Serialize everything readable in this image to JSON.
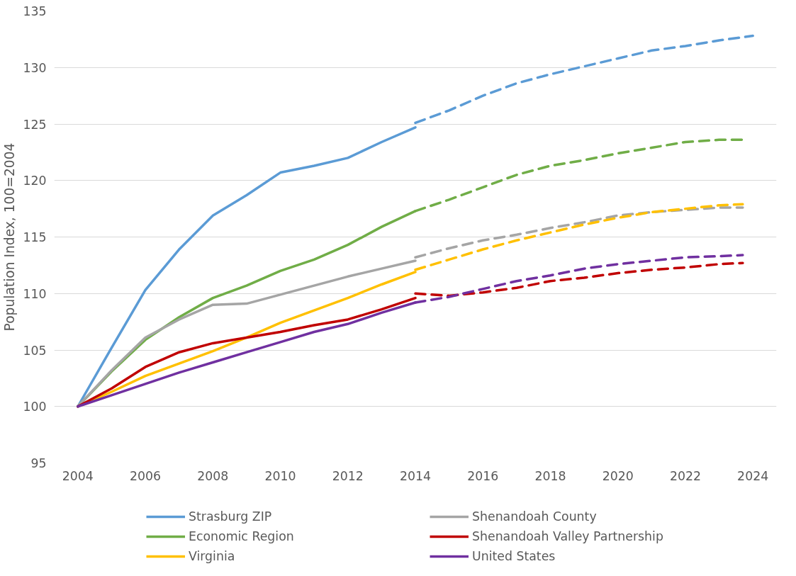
{
  "chart_data": {
    "type": "line",
    "ylabel": "Population Index, 100=2004",
    "xlim": [
      2003.3,
      2024.7
    ],
    "xticks": [
      2004,
      2006,
      2008,
      2010,
      2012,
      2014,
      2016,
      2018,
      2020,
      2022,
      2024
    ],
    "ylim": [
      95,
      135
    ],
    "yticks": [
      95,
      100,
      105,
      110,
      115,
      120,
      125,
      130,
      135
    ],
    "grid": "y",
    "legend": "bottom",
    "line_style": "solid",
    "marker": "none",
    "series": [
      {
        "name": "Strasburg ZIP",
        "color": "#5b9bd5",
        "x": [
          2004,
          2005,
          2006,
          2007,
          2008,
          2009,
          2010,
          2011,
          2012,
          2013,
          2014
        ],
        "values": [
          100,
          105.2,
          110.3,
          113.9,
          116.9,
          118.7,
          120.7,
          121.3,
          122.0,
          123.4,
          124.7
        ]
      },
      {
        "name": "Economic Region",
        "color": "#70ad47",
        "x": [
          2004,
          2005,
          2006,
          2007,
          2008,
          2009,
          2010,
          2011,
          2012,
          2013,
          2014
        ],
        "values": [
          100,
          103.1,
          105.9,
          107.9,
          109.6,
          110.7,
          112.0,
          113.0,
          114.3,
          115.9,
          117.3
        ]
      },
      {
        "name": "Virginia",
        "color": "#ffc000",
        "x": [
          2004,
          2005,
          2006,
          2007,
          2008,
          2009,
          2010,
          2011,
          2012,
          2013,
          2014
        ],
        "values": [
          100,
          101.3,
          102.7,
          103.8,
          104.9,
          106.1,
          107.4,
          108.5,
          109.6,
          110.8,
          111.9
        ]
      },
      {
        "name": "Shenandoah County",
        "color": "#a5a5a5",
        "x": [
          2004,
          2005,
          2006,
          2007,
          2008,
          2009,
          2010,
          2011,
          2012,
          2013,
          2014
        ],
        "values": [
          100,
          103.2,
          106.1,
          107.7,
          109.0,
          109.1,
          109.9,
          110.7,
          111.5,
          112.2,
          112.9
        ]
      },
      {
        "name": "Shenandoah Valley Partnership",
        "color": "#c00000",
        "x": [
          2004,
          2005,
          2006,
          2007,
          2008,
          2009,
          2010,
          2011,
          2012,
          2013,
          2014
        ],
        "values": [
          100,
          101.6,
          103.5,
          104.8,
          105.6,
          106.1,
          106.6,
          107.2,
          107.7,
          108.6,
          109.6
        ]
      },
      {
        "name": "United States",
        "color": "#7030a0",
        "x": [
          2004,
          2005,
          2006,
          2007,
          2008,
          2009,
          2010,
          2011,
          2012,
          2013,
          2014
        ],
        "values": [
          100,
          101.0,
          102.0,
          103.0,
          103.9,
          104.8,
          105.7,
          106.6,
          107.3,
          108.3,
          109.2
        ]
      },
      {
        "color": "#5b9bd5",
        "line_style": "dashed",
        "x": [
          2014,
          2015,
          2016,
          2017,
          2018,
          2019,
          2020,
          2021,
          2022,
          2023,
          2024
        ],
        "values": [
          125.1,
          126.2,
          127.5,
          128.6,
          129.4,
          130.1,
          130.8,
          131.5,
          131.9,
          132.4,
          132.8
        ]
      },
      {
        "color": "#70ad47",
        "line_style": "dashed",
        "x": [
          2014,
          2015,
          2016,
          2017,
          2018,
          2019,
          2020,
          2021,
          2022,
          2023,
          2023.7
        ],
        "values": [
          117.3,
          118.3,
          119.4,
          120.5,
          121.3,
          121.8,
          122.4,
          122.9,
          123.4,
          123.6,
          123.6
        ]
      },
      {
        "color": "#a5a5a5",
        "line_style": "dashed",
        "x": [
          2014,
          2015,
          2016,
          2017,
          2018,
          2019,
          2020,
          2021,
          2022,
          2023,
          2023.7
        ],
        "values": [
          113.2,
          114.0,
          114.7,
          115.2,
          115.8,
          116.3,
          116.9,
          117.2,
          117.4,
          117.6,
          117.6
        ]
      },
      {
        "color": "#ffc000",
        "line_style": "dashed",
        "x": [
          2014,
          2015,
          2016,
          2017,
          2018,
          2019,
          2020,
          2021,
          2022,
          2023,
          2023.7
        ],
        "values": [
          112.1,
          113.0,
          113.9,
          114.7,
          115.4,
          116.1,
          116.7,
          117.2,
          117.5,
          117.8,
          117.9
        ]
      },
      {
        "color": "#c00000",
        "line_style": "dashed",
        "x": [
          2014,
          2015,
          2016,
          2017,
          2018,
          2019,
          2020,
          2021,
          2022,
          2023,
          2023.7
        ],
        "values": [
          110.0,
          109.8,
          110.1,
          110.5,
          111.1,
          111.4,
          111.8,
          112.1,
          112.3,
          112.6,
          112.7
        ]
      },
      {
        "color": "#7030a0",
        "line_style": "dashed",
        "x": [
          2014,
          2015,
          2016,
          2017,
          2018,
          2019,
          2020,
          2021,
          2022,
          2023,
          2023.7
        ],
        "values": [
          109.2,
          109.7,
          110.4,
          111.1,
          111.6,
          112.2,
          112.6,
          112.9,
          113.2,
          113.3,
          113.4
        ]
      }
    ]
  }
}
